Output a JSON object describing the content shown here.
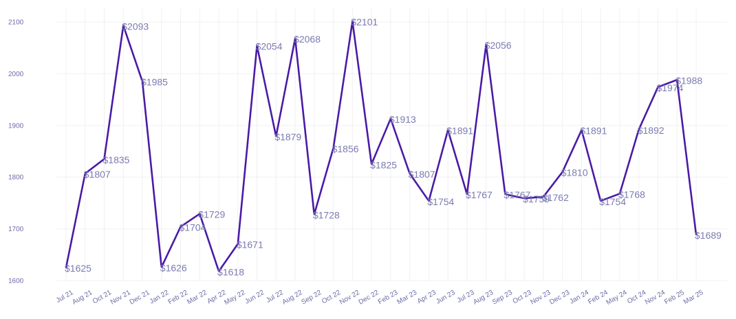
{
  "chart_data": {
    "type": "line",
    "title": "",
    "xlabel": "",
    "ylabel": "",
    "ylim": [
      1600,
      2100
    ],
    "yticks": [
      1600,
      1700,
      1800,
      1900,
      2000,
      2100
    ],
    "grid": true,
    "line_color": "#4a1aa6",
    "label_color": "#7a7ab0",
    "label_prefix": "$",
    "categories": [
      "Jul 21",
      "Aug 21",
      "Oct 21",
      "Nov 21",
      "Dec 21",
      "Jan 22",
      "Feb 22",
      "Mar 22",
      "Apr 22",
      "May 22",
      "Jun 22",
      "Jul 22",
      "Aug 22",
      "Sep 22",
      "Oct 22",
      "Nov 22",
      "Dec 22",
      "Feb 23",
      "Mar 23",
      "Apr 23",
      "Jun 23",
      "Jul 23",
      "Aug 23",
      "Sep 23",
      "Oct 23",
      "Nov 23",
      "Dec 23",
      "Jan 24",
      "Feb 24",
      "May 24",
      "Oct 24",
      "Nov 24",
      "Feb 25",
      "Mar 25"
    ],
    "values": [
      1625,
      1807,
      1835,
      2093,
      1985,
      1626,
      1704,
      1729,
      1618,
      1671,
      2054,
      1879,
      2068,
      1728,
      1856,
      2101,
      1825,
      1913,
      1807,
      1754,
      1891,
      1767,
      2056,
      1767,
      1759,
      1762,
      1810,
      1891,
      1754,
      1768,
      1892,
      1974,
      1988,
      1689
    ]
  }
}
